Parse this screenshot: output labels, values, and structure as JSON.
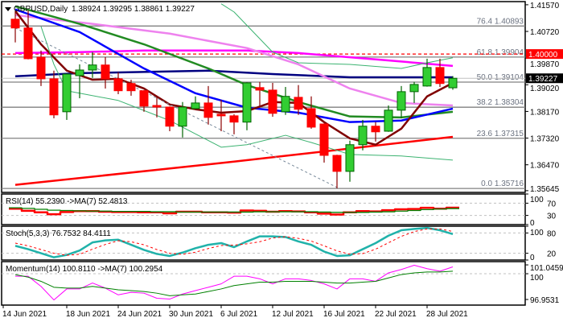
{
  "header": {
    "symbol": "GBPUSD,Daily",
    "ohlc": "1.38924 1.39295 1.38861 1.39227",
    "menu_icon": "triangle-down-icon"
  },
  "colors": {
    "bull": "#32cd32",
    "bull_border": "#006400",
    "bear": "#ff0000",
    "bear_border": "#8b0000",
    "ma_red": "#ff0000",
    "ma_magenta": "#ff00ff",
    "ma_navy": "#000080",
    "ma_violet": "#ee82ee",
    "ma_green": "#228b22",
    "ma_blue": "#0000ff",
    "ma_maroon": "#800000",
    "band": "#3cb371",
    "trendline": "#778899",
    "fib": "#808080",
    "level_red": "#ff0000",
    "current": "#000000",
    "rsi": "#ff0000",
    "rsi_ma": "#008000",
    "stoch_main": "#20b2aa",
    "stoch_signal": "#ff0000",
    "mom": "#ff00ff",
    "mom_ma": "#008000"
  },
  "chart_data": [
    {
      "type": "candlestick",
      "title": "GBPUSD,Daily",
      "ylim": [
        1.3559,
        1.4167
      ],
      "y_ticks": [
        "1.41570",
        "1.40720",
        "1.39870",
        "1.39020",
        "1.38170",
        "1.37320",
        "1.36470",
        "1.35645"
      ],
      "x_tick_labels": [
        {
          "index": 0,
          "label": "14 Jun 2021"
        },
        {
          "index": 4,
          "label": "18 Jun 2021"
        },
        {
          "index": 8,
          "label": "24 Jun 2021"
        },
        {
          "index": 12,
          "label": "30 Jun 2021"
        },
        {
          "index": 16,
          "label": "6 Jul 2021"
        },
        {
          "index": 20,
          "label": "12 Jul 2021"
        },
        {
          "index": 24,
          "label": "16 Jul 2021"
        },
        {
          "index": 28,
          "label": "22 Jul 2021"
        },
        {
          "index": 32,
          "label": "28 Jul 2021"
        }
      ],
      "ohlc": [
        [
          1.4111,
          1.4134,
          1.4037,
          1.4083
        ],
        [
          1.4083,
          1.4139,
          1.3983,
          1.3985
        ],
        [
          1.399,
          1.4011,
          1.3898,
          1.3921
        ],
        [
          1.3921,
          1.3947,
          1.3795,
          1.3806
        ],
        [
          1.3816,
          1.3938,
          1.379,
          1.3936
        ],
        [
          1.3931,
          1.3967,
          1.3859,
          1.3949
        ],
        [
          1.3949,
          1.4006,
          1.3924,
          1.3965
        ],
        [
          1.3965,
          1.399,
          1.389,
          1.3921
        ],
        [
          1.3921,
          1.3942,
          1.3872,
          1.3883
        ],
        [
          1.3906,
          1.3918,
          1.3867,
          1.3883
        ],
        [
          1.3883,
          1.3885,
          1.3816,
          1.3834
        ],
        [
          1.3836,
          1.3867,
          1.3798,
          1.3831
        ],
        [
          1.3831,
          1.3833,
          1.3754,
          1.377
        ],
        [
          1.377,
          1.3847,
          1.3734,
          1.3831
        ],
        [
          1.3826,
          1.3865,
          1.3824,
          1.3844
        ],
        [
          1.3844,
          1.3898,
          1.3775,
          1.3798
        ],
        [
          1.3808,
          1.3854,
          1.3754,
          1.3803
        ],
        [
          1.3803,
          1.3808,
          1.3744,
          1.3783
        ],
        [
          1.3783,
          1.391,
          1.3757,
          1.3908
        ],
        [
          1.3893,
          1.3911,
          1.3834,
          1.3885
        ],
        [
          1.3885,
          1.3908,
          1.38,
          1.3811
        ],
        [
          1.3816,
          1.3895,
          1.3806,
          1.3865
        ],
        [
          1.3862,
          1.3901,
          1.3806,
          1.3824
        ],
        [
          1.3826,
          1.3865,
          1.3762,
          1.3767
        ],
        [
          1.3777,
          1.3779,
          1.3654,
          1.3677
        ],
        [
          1.3677,
          1.3679,
          1.3572,
          1.3626
        ],
        [
          1.3626,
          1.3724,
          1.3593,
          1.3711
        ],
        [
          1.3711,
          1.379,
          1.3693,
          1.377
        ],
        [
          1.377,
          1.3783,
          1.3721,
          1.3752
        ],
        [
          1.3754,
          1.3836,
          1.3752,
          1.3821
        ],
        [
          1.3821,
          1.3898,
          1.3795,
          1.388
        ],
        [
          1.388,
          1.3911,
          1.3844,
          1.3903
        ],
        [
          1.3898,
          1.3985,
          1.3896,
          1.3957
        ],
        [
          1.3957,
          1.3985,
          1.3895,
          1.3906
        ],
        [
          1.38924,
          1.39295,
          1.38861,
          1.39227
        ]
      ],
      "overlays": [
        {
          "color_key": "ma_red",
          "width": 2.5,
          "points": [
            [
              0,
              1.3583
            ],
            [
              17,
              1.3657
            ],
            [
              34,
              1.3736
            ]
          ]
        },
        {
          "color_key": "ma_magenta",
          "width": 2.5,
          "points": [
            [
              0,
              1.4003
            ],
            [
              5,
              1.4006
            ],
            [
              10,
              1.4011
            ],
            [
              18,
              1.4011
            ],
            [
              22,
              1.4003
            ],
            [
              28,
              1.3983
            ],
            [
              34,
              1.3962
            ]
          ]
        },
        {
          "color_key": "ma_navy",
          "width": 2.5,
          "points": [
            [
              0,
              1.3929
            ],
            [
              5,
              1.3939
            ],
            [
              15,
              1.3947
            ],
            [
              20,
              1.3936
            ],
            [
              26,
              1.3926
            ],
            [
              34,
              1.3926
            ]
          ]
        },
        {
          "color_key": "ma_violet",
          "width": 2.5,
          "points": [
            [
              0,
              1.4124
            ],
            [
              6,
              1.4096
            ],
            [
              12,
              1.4065
            ],
            [
              18,
              1.4019
            ],
            [
              22,
              1.3967
            ],
            [
              26,
              1.389
            ],
            [
              30,
              1.3844
            ],
            [
              34,
              1.3836
            ]
          ]
        },
        {
          "color_key": "ma_green",
          "width": 2.5,
          "points": [
            [
              0,
              1.4152
            ],
            [
              5,
              1.4096
            ],
            [
              10,
              1.4031
            ],
            [
              15,
              1.3954
            ],
            [
              18,
              1.3901
            ],
            [
              22,
              1.3847
            ],
            [
              26,
              1.3801
            ],
            [
              30,
              1.3798
            ],
            [
              34,
              1.3816
            ]
          ]
        },
        {
          "color_key": "ma_blue",
          "width": 2.5,
          "points": [
            [
              0,
              1.4142
            ],
            [
              5,
              1.407
            ],
            [
              10,
              1.3954
            ],
            [
              14,
              1.3875
            ],
            [
              18,
              1.3829
            ],
            [
              22,
              1.3813
            ],
            [
              26,
              1.3783
            ],
            [
              30,
              1.3788
            ],
            [
              34,
              1.3826
            ]
          ]
        },
        {
          "color_key": "ma_maroon",
          "width": 2.5,
          "points": [
            [
              0,
              1.4137
            ],
            [
              2,
              1.4031
            ],
            [
              4,
              1.3947
            ],
            [
              6,
              1.3918
            ],
            [
              8,
              1.3921
            ],
            [
              10,
              1.389
            ],
            [
              12,
              1.3839
            ],
            [
              14,
              1.3824
            ],
            [
              16,
              1.3813
            ],
            [
              18,
              1.3818
            ],
            [
              20,
              1.3847
            ],
            [
              22,
              1.3844
            ],
            [
              24,
              1.3783
            ],
            [
              26,
              1.3731
            ],
            [
              28,
              1.3711
            ],
            [
              30,
              1.3762
            ],
            [
              32,
              1.3865
            ],
            [
              34,
              1.3908
            ]
          ]
        },
        {
          "color_key": "band",
          "width": 1,
          "points": [
            [
              16,
              1.416
            ],
            [
              17,
              1.4134
            ],
            [
              20,
              1.4006
            ],
            [
              22,
              1.3972
            ],
            [
              26,
              1.3967
            ],
            [
              30,
              1.3954
            ],
            [
              32,
              1.3972
            ],
            [
              34,
              1.3988
            ]
          ]
        },
        {
          "color_key": "band",
          "width": 1,
          "points": [
            [
              2,
              1.4088
            ],
            [
              3,
              1.3967
            ],
            [
              4,
              1.3883
            ],
            [
              8,
              1.3852
            ],
            [
              12,
              1.3788
            ],
            [
              16,
              1.3703
            ],
            [
              18,
              1.3711
            ],
            [
              21,
              1.3741
            ],
            [
              23,
              1.3718
            ],
            [
              26,
              1.368
            ],
            [
              30,
              1.3675
            ],
            [
              34,
              1.3662
            ]
          ]
        },
        {
          "color_key": "trendline",
          "width": 1,
          "dashed": true,
          "points": [
            [
              0,
              1.4083
            ],
            [
              25,
              1.3575
            ]
          ]
        }
      ],
      "fib_levels": [
        {
          "label": "76.4 1.40893",
          "value": 1.40893
        },
        {
          "label": "61.8 1.39904",
          "value": 1.39904
        },
        {
          "label": "50.0 1.39104",
          "value": 1.39104
        },
        {
          "label": "38.2 1.38304",
          "value": 1.38304
        },
        {
          "label": "23.6 1.37315",
          "value": 1.37315
        },
        {
          "label": "0.0 1.35716",
          "value": 1.35716
        }
      ],
      "level_line": {
        "label": "1.40000",
        "value": 1.4
      },
      "current_price": {
        "label": "1.39227",
        "value": 1.39227
      }
    },
    {
      "type": "line",
      "title": "RSI(14) 55.2390  ->MA(7) 52.4813",
      "ylim": [
        0,
        100
      ],
      "y_ticks": [
        "100",
        "70",
        "30",
        "0"
      ],
      "levels": [
        70,
        30
      ],
      "series": [
        {
          "name": "RSI(14)",
          "color_key": "rsi",
          "width": 2.5,
          "step": true,
          "values": [
            52,
            45,
            40,
            34,
            41,
            44,
            44,
            42,
            41,
            41,
            40,
            40,
            37,
            42,
            42,
            40,
            40,
            39,
            46,
            45,
            42,
            44,
            43,
            40,
            36,
            33,
            40,
            44,
            43,
            47,
            50,
            51,
            55,
            52,
            55.239
          ]
        },
        {
          "name": "MA(7)",
          "color_key": "rsi_ma",
          "width": 1.3,
          "step": true,
          "values": [
            55,
            53,
            50,
            47,
            46,
            45,
            44,
            44,
            43,
            43,
            43,
            42,
            42,
            41,
            41,
            41,
            41,
            41,
            41,
            42,
            42,
            42,
            42,
            42,
            41,
            40,
            40,
            40,
            41,
            42,
            44,
            46,
            49,
            51,
            52.4813
          ]
        }
      ]
    },
    {
      "type": "line",
      "title": "Stoch(5,3,3) 76.7532 84.4111",
      "ylim": [
        0,
        100
      ],
      "y_ticks": [
        "100",
        "80",
        "20",
        "0"
      ],
      "levels": [
        80,
        20
      ],
      "series": [
        {
          "color_key": "stoch_main",
          "width": 2.5,
          "values": [
            42,
            32,
            20,
            8,
            15,
            28,
            52,
            58,
            60,
            45,
            30,
            18,
            12,
            22,
            35,
            45,
            50,
            38,
            55,
            70,
            70,
            68,
            55,
            45,
            25,
            12,
            14,
            32,
            50,
            72,
            88,
            92,
            95,
            88,
            76.7532
          ]
        },
        {
          "color_key": "stoch_signal",
          "width": 1,
          "dashed": true,
          "values": [
            50,
            42,
            31,
            20,
            14,
            17,
            32,
            46,
            57,
            54,
            45,
            31,
            20,
            17,
            23,
            34,
            43,
            44,
            48,
            54,
            65,
            69,
            64,
            56,
            42,
            27,
            17,
            19,
            32,
            51,
            70,
            84,
            92,
            92,
            84.4111
          ]
        }
      ]
    },
    {
      "type": "line",
      "title": "Momentum(14) 100.8110  ->MA(7) 100.2954",
      "ylim": [
        96.29,
        101.43
      ],
      "y_ticks": [
        "101.0459",
        "100",
        "96.9531"
      ],
      "levels": [
        100
      ],
      "series": [
        {
          "name": "Momentum(14)",
          "color_key": "mom",
          "width": 1,
          "values": [
            99.7,
            99.7,
            98.5,
            96.9,
            98.2,
            98.2,
            98.9,
            98.3,
            97.5,
            97.8,
            97.7,
            97.1,
            97.0,
            97.6,
            98.0,
            98.4,
            98.8,
            99.7,
            99.7,
            99.4,
            98.8,
            99.4,
            99.4,
            99.2,
            98.8,
            98.2,
            99.4,
            99.4,
            99.1,
            100.1,
            100.5,
            101.0,
            100.6,
            100.3,
            100.811
          ]
        },
        {
          "name": "MA(7)",
          "color_key": "mom_ma",
          "width": 1,
          "values": [
            99.9,
            99.6,
            99.1,
            98.4,
            98.3,
            98.3,
            98.5,
            98.3,
            98.1,
            98.0,
            97.9,
            97.7,
            97.4,
            97.5,
            97.6,
            97.9,
            98.2,
            98.6,
            98.8,
            99.0,
            99.0,
            99.1,
            99.1,
            99.1,
            99.0,
            98.9,
            98.9,
            99.0,
            99.1,
            99.5,
            99.9,
            100.1,
            100.2,
            100.2,
            100.2954
          ]
        }
      ]
    }
  ]
}
